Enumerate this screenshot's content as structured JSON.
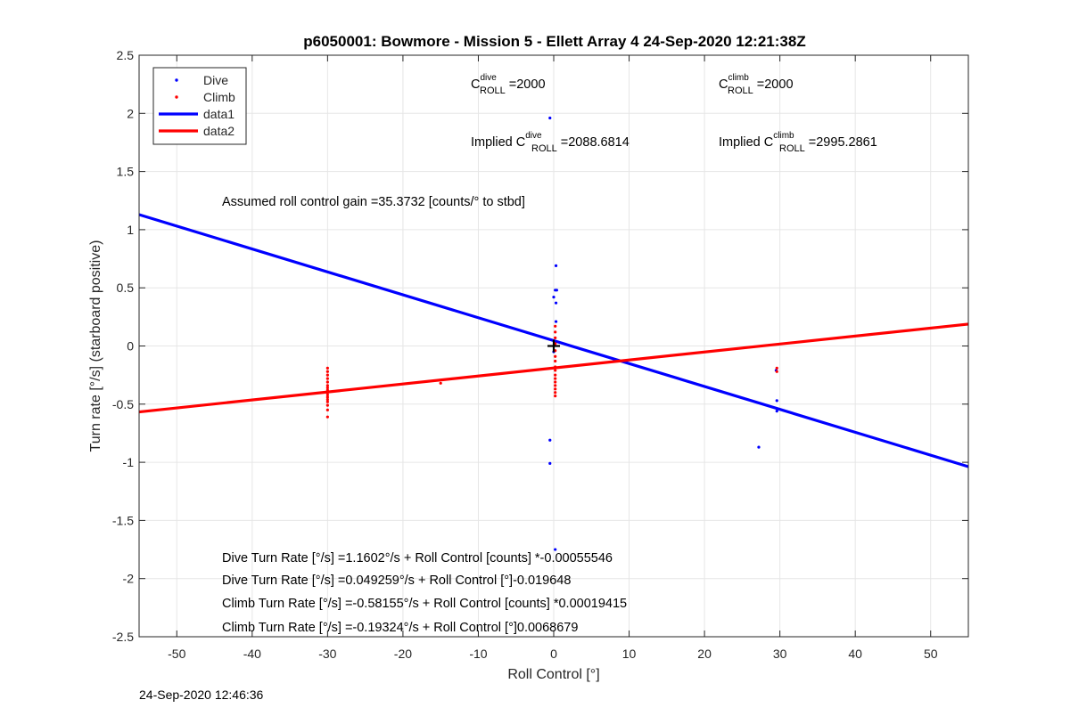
{
  "chart_data": {
    "type": "scatter",
    "title": "p6050001: Bowmore - Mission 5 - Ellett Array 4 24-Sep-2020 12:21:38Z",
    "xlabel": "Roll Control [°]",
    "ylabel": "Turn rate [°/s] (starboard positive)",
    "xlim": [
      -55,
      55
    ],
    "ylim": [
      -2.5,
      2.5
    ],
    "xticks": [
      -50,
      -40,
      -30,
      -20,
      -10,
      0,
      10,
      20,
      30,
      40,
      50
    ],
    "yticks": [
      -2.5,
      -2,
      -1.5,
      -1,
      -0.5,
      0,
      0.5,
      1,
      1.5,
      2,
      2.5
    ],
    "xtick_labels": [
      "-50",
      "-40",
      "-30",
      "-20",
      "-10",
      "0",
      "10",
      "20",
      "30",
      "40",
      "50"
    ],
    "ytick_labels": [
      "-2.5",
      "-2",
      "-1.5",
      "-1",
      "-0.5",
      "0",
      "0.5",
      "1",
      "1.5",
      "2",
      "2.5"
    ],
    "grid": true,
    "legend_position": "top-left",
    "legend": [
      {
        "label": "Dive",
        "kind": "marker",
        "color": "#0000ff"
      },
      {
        "label": "Climb",
        "kind": "marker",
        "color": "#ff0000"
      },
      {
        "label": "data1",
        "kind": "line",
        "color": "#0000ff"
      },
      {
        "label": "data2",
        "kind": "line",
        "color": "#ff0000"
      }
    ],
    "series": [
      {
        "name": "Dive",
        "kind": "scatter",
        "color": "#0000ff",
        "points": [
          [
            -0.5,
            1.96
          ],
          [
            0.3,
            0.69
          ],
          [
            0.2,
            0.48
          ],
          [
            0.4,
            0.48
          ],
          [
            0.0,
            0.42
          ],
          [
            0.3,
            0.37
          ],
          [
            0.3,
            0.21
          ],
          [
            0.1,
            0.02
          ],
          [
            0.0,
            -0.05
          ],
          [
            -0.5,
            -0.81
          ],
          [
            -0.5,
            -1.01
          ],
          [
            0.2,
            -1.75
          ],
          [
            29.5,
            -0.21
          ],
          [
            29.6,
            -0.47
          ],
          [
            29.6,
            -0.56
          ],
          [
            27.2,
            -0.87
          ]
        ]
      },
      {
        "name": "Climb",
        "kind": "scatter",
        "color": "#ff0000",
        "points": [
          [
            -30,
            -0.19
          ],
          [
            -30,
            -0.22
          ],
          [
            -30,
            -0.25
          ],
          [
            -30,
            -0.28
          ],
          [
            -30,
            -0.31
          ],
          [
            -30,
            -0.34
          ],
          [
            -30,
            -0.36
          ],
          [
            -30,
            -0.38
          ],
          [
            -30,
            -0.4
          ],
          [
            -30,
            -0.42
          ],
          [
            -30,
            -0.44
          ],
          [
            -30,
            -0.46
          ],
          [
            -30,
            -0.48
          ],
          [
            -30,
            -0.51
          ],
          [
            -30,
            -0.55
          ],
          [
            -30,
            -0.61
          ],
          [
            -15,
            -0.32
          ],
          [
            0.2,
            0.17
          ],
          [
            0.2,
            0.12
          ],
          [
            0.2,
            0.07
          ],
          [
            0.2,
            0.02
          ],
          [
            0.2,
            -0.04
          ],
          [
            0.2,
            -0.09
          ],
          [
            0.2,
            -0.13
          ],
          [
            0.2,
            -0.18
          ],
          [
            0.2,
            -0.21
          ],
          [
            0.2,
            -0.25
          ],
          [
            0.2,
            -0.28
          ],
          [
            0.2,
            -0.31
          ],
          [
            0.2,
            -0.34
          ],
          [
            0.2,
            -0.37
          ],
          [
            0.2,
            -0.4
          ],
          [
            0.2,
            -0.43
          ],
          [
            29.6,
            -0.19
          ],
          [
            29.6,
            -0.22
          ]
        ]
      },
      {
        "name": "data1",
        "kind": "line",
        "color": "#0000ff",
        "x": [
          -55,
          55
        ],
        "y": [
          1.1293,
          -1.0375
        ]
      },
      {
        "name": "data2",
        "kind": "line",
        "color": "#ff0000",
        "x": [
          -55,
          55
        ],
        "y": [
          -0.567,
          0.1883
        ]
      }
    ],
    "marker": {
      "symbol": "+",
      "x": 0,
      "y": 0,
      "color": "#000000"
    },
    "annotations": {
      "c_roll_dive": {
        "prefix": "C",
        "sup": "dive",
        "sub": "ROLL",
        "value": " =2000"
      },
      "c_roll_climb": {
        "prefix": "C",
        "sup": "climb",
        "sub": "ROLL",
        "value": " =2000"
      },
      "implied_dive": {
        "prefix": "Implied C",
        "sup": "dive",
        "sub": "ROLL",
        "value": " =2088.6814"
      },
      "implied_climb": {
        "prefix": "Implied C",
        "sup": "climb",
        "sub": "ROLL",
        "value": " =2995.2861"
      },
      "gain": "Assumed roll control gain =35.3732 [counts/° to stbd]",
      "eq1": "Dive Turn Rate [°/s] =1.1602°/s + Roll Control [counts] *-0.00055546",
      "eq2": "Dive Turn Rate [°/s] =0.049259°/s + Roll Control [°]-0.019648",
      "eq3": "Climb Turn Rate [°/s] =-0.58155°/s + Roll Control [counts] *0.00019415",
      "eq4": "Climb Turn Rate [°/s] =-0.19324°/s + Roll Control [°]0.0068679"
    },
    "footer": "24-Sep-2020 12:46:36"
  }
}
